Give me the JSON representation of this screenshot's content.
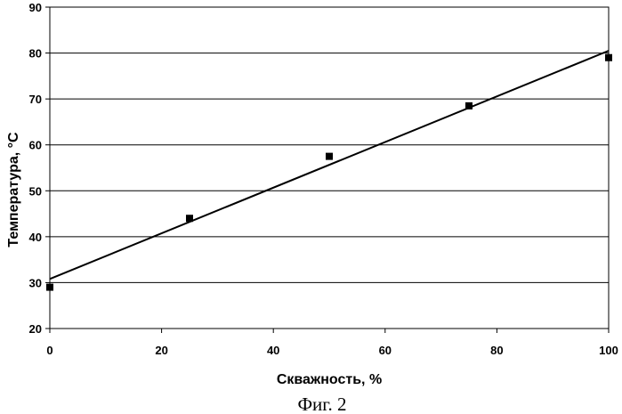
{
  "chart_data": {
    "type": "scatter",
    "xlabel": "Скважность, %",
    "ylabel": "Температура, °С",
    "xlim": [
      0,
      100
    ],
    "ylim": [
      20,
      90
    ],
    "x_ticks": [
      "0",
      "20",
      "40",
      "60",
      "80",
      "100"
    ],
    "y_ticks": [
      "20",
      "30",
      "40",
      "50",
      "60",
      "70",
      "80",
      "90"
    ],
    "grid": "horizontal",
    "legend": "none",
    "series": [
      {
        "marker": "square",
        "x": [
          0,
          25,
          50,
          75,
          100
        ],
        "y": [
          29,
          44,
          57.5,
          68.5,
          79
        ]
      }
    ],
    "trendline": {
      "type": "linear",
      "x": [
        0,
        100
      ],
      "y": [
        30.8,
        80.5
      ]
    }
  },
  "caption": "Фиг. 2"
}
